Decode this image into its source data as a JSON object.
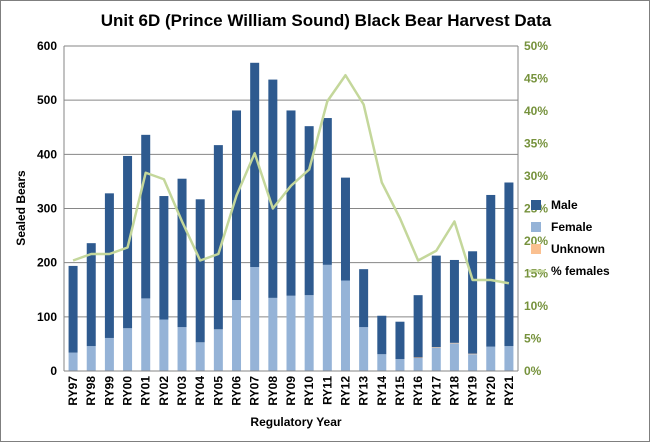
{
  "chart_data": {
    "type": "bar",
    "title": "Unit 6D (Prince William Sound) Black Bear Harvest Data",
    "xlabel": "Regulatory Year",
    "ylabel": "Sealed Bears",
    "ylim": [
      0,
      600
    ],
    "y2lim": [
      0,
      0.5
    ],
    "yticks": [
      "0",
      "100",
      "200",
      "300",
      "400",
      "500",
      "600"
    ],
    "y2ticks": [
      "0%",
      "5%",
      "10%",
      "15%",
      "20%",
      "25%",
      "30%",
      "35%",
      "40%",
      "45%",
      "50%"
    ],
    "grid": true,
    "legend_position": "right",
    "categories": [
      "RY97",
      "RY98",
      "RY99",
      "RY00",
      "RY01",
      "RY02",
      "RY03",
      "RY04",
      "RY05",
      "RY06",
      "RY07",
      "RY08",
      "RY09",
      "RY10",
      "RY11",
      "RY12",
      "RY13",
      "RY14",
      "RY15",
      "RY16",
      "RY17",
      "RY18",
      "RY19",
      "RY20",
      "RY21"
    ],
    "series": [
      {
        "name": "Male",
        "type": "bar",
        "stack": true,
        "color": "#2e5a8f",
        "values": [
          160,
          190,
          267,
          318,
          302,
          228,
          274,
          264,
          340,
          350,
          377,
          403,
          342,
          312,
          271,
          190,
          107,
          71,
          69,
          115,
          169,
          153,
          189,
          280,
          302
        ]
      },
      {
        "name": "Female",
        "type": "bar",
        "stack": true,
        "color": "#95b3d7",
        "values": [
          34,
          46,
          61,
          79,
          134,
          95,
          81,
          53,
          77,
          131,
          192,
          135,
          139,
          140,
          196,
          167,
          81,
          31,
          22,
          24,
          43,
          51,
          31,
          45,
          46
        ]
      },
      {
        "name": "Unknown",
        "type": "bar",
        "stack": true,
        "color": "#fac090",
        "values": [
          0,
          0,
          0,
          0,
          0,
          0,
          0,
          0,
          0,
          0,
          0,
          0,
          0,
          0,
          0,
          0,
          0,
          0,
          0,
          1,
          1,
          1,
          1,
          0,
          0
        ]
      },
      {
        "name": "% females",
        "type": "line",
        "axis": "right",
        "color": "#c4d79b",
        "values": [
          0.17,
          0.18,
          0.18,
          0.19,
          0.305,
          0.295,
          0.23,
          0.17,
          0.18,
          0.27,
          0.335,
          0.25,
          0.285,
          0.31,
          0.415,
          0.455,
          0.41,
          0.29,
          0.235,
          0.17,
          0.185,
          0.23,
          0.14,
          0.14,
          0.135
        ]
      }
    ]
  },
  "colors": {
    "title": "#000000",
    "axis_text": "#000000",
    "right_axis_text": "#76923c",
    "grid": "#868686"
  }
}
